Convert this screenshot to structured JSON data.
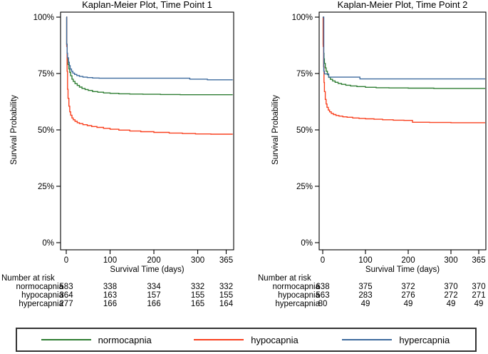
{
  "figure": {
    "background": "#ffffff"
  },
  "colors": {
    "normocapnia": "#2e7d32",
    "hypocapnia": "#f9401f",
    "hypercapnia": "#3e6b9e",
    "axis": "#000000",
    "text": "#000000"
  },
  "legend": {
    "entries": [
      {
        "label": "normocapnia"
      },
      {
        "label": "hypocapnia"
      },
      {
        "label": "hypercapnia"
      }
    ]
  },
  "chart_data": [
    {
      "type": "line",
      "subtype": "kaplan-meier-step",
      "title": "Kaplan-Meier Plot, Time Point 1",
      "xlabel": "Survival Time (days)",
      "ylabel": "Survival Probability",
      "xlim": [
        0,
        365
      ],
      "ylim": [
        0,
        100
      ],
      "x_ticks": [
        0,
        100,
        200,
        300,
        365
      ],
      "y_ticks": [
        0,
        25,
        50,
        75,
        100
      ],
      "y_tick_labels": [
        "0%",
        "25%",
        "50%",
        "75%",
        "100%"
      ],
      "grid": false,
      "legend_position": "shared-bottom",
      "series": [
        {
          "name": "normocapnia",
          "points": [
            [
              0,
              100
            ],
            [
              1,
              88
            ],
            [
              2,
              84
            ],
            [
              3,
              81
            ],
            [
              4,
              79
            ],
            [
              6,
              77
            ],
            [
              8,
              75.5
            ],
            [
              10,
              74
            ],
            [
              13,
              72.5
            ],
            [
              16,
              71.5
            ],
            [
              20,
              70.5
            ],
            [
              25,
              69.7
            ],
            [
              30,
              69
            ],
            [
              36,
              68.4
            ],
            [
              43,
              67.9
            ],
            [
              50,
              67.5
            ],
            [
              60,
              67
            ],
            [
              72,
              66.7
            ],
            [
              85,
              66.4
            ],
            [
              100,
              66.2
            ],
            [
              120,
              66
            ],
            [
              145,
              65.9
            ],
            [
              175,
              65.8
            ],
            [
              215,
              65.7
            ],
            [
              260,
              65.6
            ],
            [
              380,
              65.6
            ]
          ]
        },
        {
          "name": "hypocapnia",
          "points": [
            [
              0,
              100
            ],
            [
              1,
              87
            ],
            [
              2,
              76
            ],
            [
              3,
              68
            ],
            [
              4,
              64
            ],
            [
              6,
              60.5
            ],
            [
              8,
              58
            ],
            [
              10,
              56.5
            ],
            [
              13,
              55.3
            ],
            [
              16,
              54.5
            ],
            [
              20,
              53.8
            ],
            [
              25,
              53.2
            ],
            [
              30,
              52.8
            ],
            [
              38,
              52.3
            ],
            [
              48,
              51.9
            ],
            [
              58,
              51.5
            ],
            [
              70,
              51.1
            ],
            [
              85,
              50.7
            ],
            [
              100,
              50.3
            ],
            [
              120,
              49.9
            ],
            [
              145,
              49.5
            ],
            [
              170,
              49.2
            ],
            [
              200,
              48.9
            ],
            [
              235,
              48.6
            ],
            [
              265,
              48.4
            ],
            [
              295,
              48.2
            ],
            [
              330,
              48.1
            ],
            [
              380,
              48.1
            ]
          ]
        },
        {
          "name": "hypercapnia",
          "points": [
            [
              0,
              100
            ],
            [
              1,
              88
            ],
            [
              2,
              84
            ],
            [
              3,
              82
            ],
            [
              5,
              80
            ],
            [
              7,
              78.5
            ],
            [
              9,
              77
            ],
            [
              12,
              76
            ],
            [
              15,
              75.2
            ],
            [
              19,
              74.6
            ],
            [
              24,
              74.1
            ],
            [
              30,
              73.7
            ],
            [
              38,
              73.4
            ],
            [
              48,
              73.2
            ],
            [
              60,
              73
            ],
            [
              75,
              72.9
            ],
            [
              282,
              72.5
            ],
            [
              322,
              72.2
            ],
            [
              380,
              72.2
            ]
          ]
        }
      ],
      "number_at_risk": {
        "title": "Number at risk",
        "times": [
          0,
          100,
          200,
          300,
          365
        ],
        "rows": [
          {
            "label": "normocapnia",
            "counts": [
              583,
              338,
              334,
              332,
              332
            ]
          },
          {
            "label": "hypocapnia",
            "counts": [
              364,
              163,
              157,
              155,
              155
            ]
          },
          {
            "label": "hypercapnia",
            "counts": [
              277,
              166,
              166,
              165,
              164
            ]
          }
        ]
      }
    },
    {
      "type": "line",
      "subtype": "kaplan-meier-step",
      "title": "Kaplan-Meier Plot, Time Point 2",
      "xlabel": "Survival Time (days)",
      "ylabel": "Survival Probability",
      "xlim": [
        0,
        365
      ],
      "ylim": [
        0,
        100
      ],
      "x_ticks": [
        0,
        100,
        200,
        300,
        365
      ],
      "y_ticks": [
        0,
        25,
        50,
        75,
        100
      ],
      "y_tick_labels": [
        "0%",
        "25%",
        "50%",
        "75%",
        "100%"
      ],
      "grid": false,
      "legend_position": "shared-bottom",
      "series": [
        {
          "name": "normocapnia",
          "points": [
            [
              0,
              100
            ],
            [
              1,
              88
            ],
            [
              2,
              84
            ],
            [
              3,
              81.5
            ],
            [
              4,
              79.5
            ],
            [
              6,
              77.5
            ],
            [
              8,
              76
            ],
            [
              11,
              74.5
            ],
            [
              14,
              73.3
            ],
            [
              18,
              72.4
            ],
            [
              23,
              71.7
            ],
            [
              29,
              71.1
            ],
            [
              36,
              70.6
            ],
            [
              44,
              70.2
            ],
            [
              54,
              69.8
            ],
            [
              65,
              69.5
            ],
            [
              80,
              69.2
            ],
            [
              100,
              68.9
            ],
            [
              125,
              68.7
            ],
            [
              155,
              68.6
            ],
            [
              200,
              68.5
            ],
            [
              260,
              68.4
            ],
            [
              380,
              68.4
            ]
          ]
        },
        {
          "name": "hypocapnia",
          "points": [
            [
              0,
              100
            ],
            [
              1,
              87
            ],
            [
              2,
              78
            ],
            [
              3,
              71
            ],
            [
              4,
              67
            ],
            [
              6,
              63.5
            ],
            [
              8,
              61.5
            ],
            [
              10,
              60
            ],
            [
              13,
              58.8
            ],
            [
              16,
              58
            ],
            [
              20,
              57.3
            ],
            [
              25,
              56.8
            ],
            [
              31,
              56.4
            ],
            [
              38,
              56.1
            ],
            [
              47,
              55.8
            ],
            [
              57,
              55.6
            ],
            [
              70,
              55.3
            ],
            [
              85,
              55.1
            ],
            [
              100,
              54.9
            ],
            [
              120,
              54.7
            ],
            [
              140,
              54.5
            ],
            [
              165,
              54.3
            ],
            [
              190,
              54.2
            ],
            [
              210,
              53.4
            ],
            [
              250,
              53.3
            ],
            [
              300,
              53.2
            ],
            [
              380,
              53.2
            ]
          ]
        },
        {
          "name": "hypercapnia",
          "points": [
            [
              0,
              100
            ],
            [
              2.5,
              76
            ],
            [
              4,
              74.8
            ],
            [
              14,
              73.4
            ],
            [
              87,
              72.6
            ],
            [
              380,
              72.6
            ]
          ]
        }
      ],
      "number_at_risk": {
        "title": "Number at risk",
        "times": [
          0,
          100,
          200,
          300,
          365
        ],
        "rows": [
          {
            "label": "normocapnia",
            "counts": [
              638,
              375,
              372,
              370,
              370
            ]
          },
          {
            "label": "hypocapnia",
            "counts": [
              563,
              283,
              276,
              272,
              271
            ]
          },
          {
            "label": "hypercapnia",
            "counts": [
              80,
              49,
              49,
              49,
              49
            ]
          }
        ]
      }
    }
  ]
}
